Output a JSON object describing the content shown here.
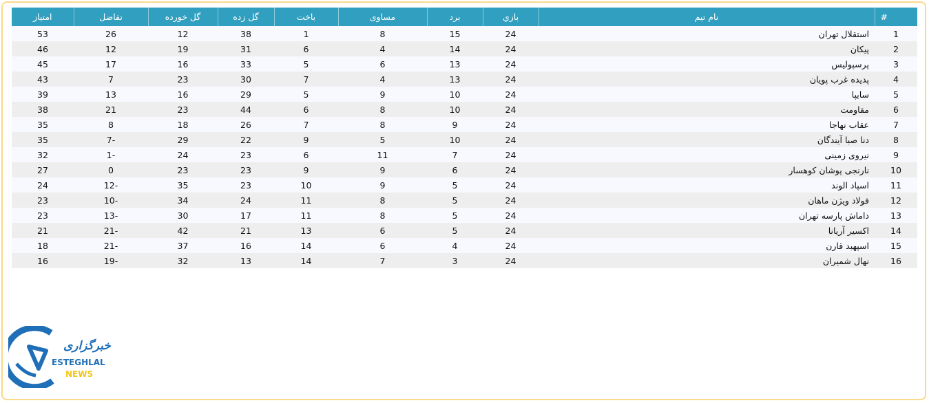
{
  "header": {
    "rank": "#",
    "team": "نام تيم",
    "played": "بازي",
    "won": "برد",
    "drawn": "مساوی",
    "lost": "باخت",
    "gf": "گل زده",
    "ga": "گل خورده",
    "gd": "تفاضل",
    "pts": "امتیاز"
  },
  "rows": [
    {
      "rank": "1",
      "team": "استقلال تهران",
      "played": "24",
      "won": "15",
      "drawn": "8",
      "lost": "1",
      "gf": "38",
      "ga": "12",
      "gd": "26",
      "pts": "53"
    },
    {
      "rank": "2",
      "team": "پیکان",
      "played": "24",
      "won": "14",
      "drawn": "4",
      "lost": "6",
      "gf": "31",
      "ga": "19",
      "gd": "12",
      "pts": "46"
    },
    {
      "rank": "3",
      "team": "پرسپولیس",
      "played": "24",
      "won": "13",
      "drawn": "6",
      "lost": "5",
      "gf": "33",
      "ga": "16",
      "gd": "17",
      "pts": "45"
    },
    {
      "rank": "4",
      "team": "پدیده غرب پویان",
      "played": "24",
      "won": "13",
      "drawn": "4",
      "lost": "7",
      "gf": "30",
      "ga": "23",
      "gd": "7",
      "pts": "43"
    },
    {
      "rank": "5",
      "team": "سایپا",
      "played": "24",
      "won": "10",
      "drawn": "9",
      "lost": "5",
      "gf": "29",
      "ga": "16",
      "gd": "13",
      "pts": "39"
    },
    {
      "rank": "6",
      "team": "مقاومت",
      "played": "24",
      "won": "10",
      "drawn": "8",
      "lost": "6",
      "gf": "44",
      "ga": "23",
      "gd": "21",
      "pts": "38"
    },
    {
      "rank": "7",
      "team": "عقاب نهاجا",
      "played": "24",
      "won": "9",
      "drawn": "8",
      "lost": "7",
      "gf": "26",
      "ga": "18",
      "gd": "8",
      "pts": "35"
    },
    {
      "rank": "8",
      "team": "دنا صبا آیندگان",
      "played": "24",
      "won": "10",
      "drawn": "5",
      "lost": "9",
      "gf": "22",
      "ga": "29",
      "gd": "-7",
      "pts": "35"
    },
    {
      "rank": "9",
      "team": "نیروی زمینی",
      "played": "24",
      "won": "7",
      "drawn": "11",
      "lost": "6",
      "gf": "23",
      "ga": "24",
      "gd": "-1",
      "pts": "32"
    },
    {
      "rank": "10",
      "team": "نارنجی پوشان کوهسار",
      "played": "24",
      "won": "6",
      "drawn": "9",
      "lost": "9",
      "gf": "23",
      "ga": "23",
      "gd": "0",
      "pts": "27"
    },
    {
      "rank": "11",
      "team": "اسپاد الوند",
      "played": "24",
      "won": "5",
      "drawn": "9",
      "lost": "10",
      "gf": "23",
      "ga": "35",
      "gd": "-12",
      "pts": "24"
    },
    {
      "rank": "12",
      "team": "فولاد ویژن ماهان",
      "played": "24",
      "won": "5",
      "drawn": "8",
      "lost": "11",
      "gf": "24",
      "ga": "34",
      "gd": "-10",
      "pts": "23"
    },
    {
      "rank": "13",
      "team": "داماش پارسه تهران",
      "played": "24",
      "won": "5",
      "drawn": "8",
      "lost": "11",
      "gf": "17",
      "ga": "30",
      "gd": "-13",
      "pts": "23"
    },
    {
      "rank": "14",
      "team": "اکسیر آریانا",
      "played": "24",
      "won": "5",
      "drawn": "6",
      "lost": "13",
      "gf": "21",
      "ga": "42",
      "gd": "-21",
      "pts": "21"
    },
    {
      "rank": "15",
      "team": "اسپهبد قارن",
      "played": "24",
      "won": "4",
      "drawn": "6",
      "lost": "14",
      "gf": "16",
      "ga": "37",
      "gd": "-21",
      "pts": "18"
    },
    {
      "rank": "16",
      "team": "نهال شمیران",
      "played": "24",
      "won": "3",
      "drawn": "7",
      "lost": "14",
      "gf": "13",
      "ga": "32",
      "gd": "-19",
      "pts": "16"
    }
  ],
  "logo": {
    "arabic": "خبرگزاری",
    "english": "ESTEGHLAL",
    "news": "NEWS"
  },
  "colors": {
    "header_bg": "#319fbf",
    "row_odd": "#f8f9ff",
    "row_even": "#eeeeee",
    "frame": "#fbd98c",
    "logo_blue": "#1e6fb8",
    "logo_yellow": "#f2c51c"
  }
}
